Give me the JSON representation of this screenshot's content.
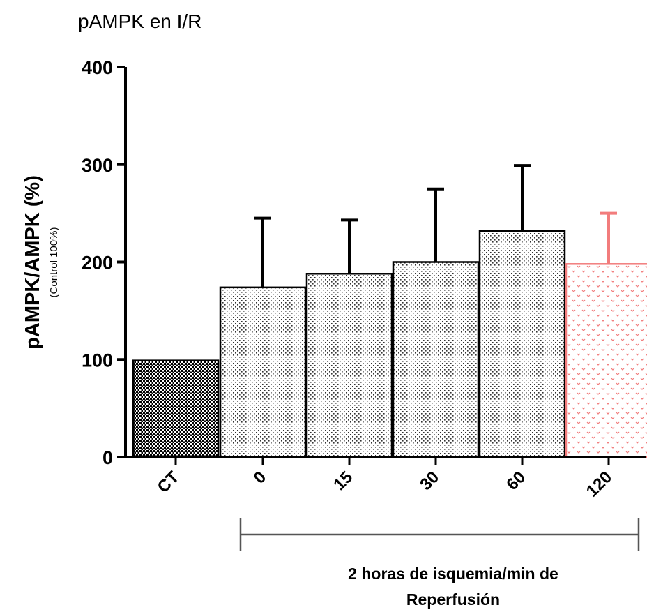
{
  "chart_data": {
    "type": "bar",
    "title": "pAMPK en I/R",
    "ylabel": "pAMPK/AMPK (%)",
    "ylabel_sub": "(Control 100%)",
    "ylim": [
      0,
      400
    ],
    "yticks": [
      0,
      100,
      200,
      300,
      400
    ],
    "categories": [
      "CT",
      "0",
      "15",
      "30",
      "60",
      "120"
    ],
    "values": [
      99,
      174,
      188,
      200,
      232,
      198
    ],
    "error_upper": [
      null,
      245,
      243,
      275,
      299,
      250
    ],
    "bracket_label_line1": "2 horas de isquemia/min de",
    "bracket_label_line2": "Reperfusión",
    "grid": false,
    "colors": {
      "axis": "#000000",
      "bar_edge": "#000000",
      "highlight": "#f27c7c"
    },
    "highlight_index": 5
  }
}
